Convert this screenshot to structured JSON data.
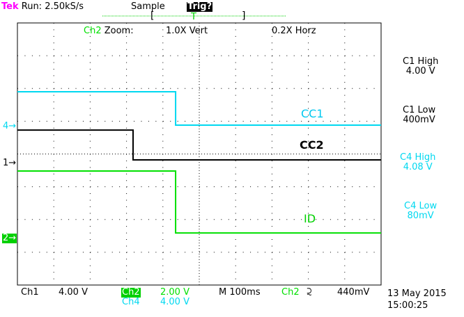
{
  "header": {
    "brand": "Tek",
    "run": "Run: 2.50kS/s",
    "mode": "Sample",
    "trigger_status": "Trig?",
    "trigger_marker": "T"
  },
  "zoom_info": {
    "channel": "Ch2",
    "label": "Zoom:",
    "vert": "1.0X Vert",
    "horz": "0.2X Horz"
  },
  "measurements": [
    {
      "label": "C1 High",
      "value": "4.00 V",
      "color": "#000000"
    },
    {
      "label": "C1 Low",
      "value": "400mV",
      "color": "#000000"
    },
    {
      "label": "C4 High",
      "value": "4.08 V",
      "color": "#00d8f0"
    },
    {
      "label": "C4 Low",
      "value": "80mV",
      "color": "#00d8f0"
    }
  ],
  "markers": {
    "ch4": "4",
    "ch1": "1",
    "ch2": "2"
  },
  "footer": {
    "ch1": "Ch1",
    "ch1_scale": "4.00 V",
    "ch2": "Ch2",
    "ch2_scale": "2.00 V",
    "ch4": "Ch4",
    "ch4_scale": "4.00 V",
    "timebase": "M 100ms",
    "trig_ch": "Ch2",
    "trig_slope": "⫈",
    "trig_level": "440mV",
    "date": "13 May 2015",
    "time": "15:00:25"
  },
  "chart_data": {
    "type": "line",
    "xlabel": "",
    "ylabel": "",
    "x_unit": "ms",
    "y_unit": "div",
    "xlim": [
      0,
      1000
    ],
    "ylim": [
      -4,
      4
    ],
    "grid": true,
    "series": [
      {
        "name": "CC1",
        "color": "#00d8f0",
        "points": [
          [
            0,
            1.9
          ],
          [
            435,
            1.9
          ],
          [
            435,
            0.88
          ],
          [
            1000,
            0.88
          ]
        ]
      },
      {
        "name": "CC2",
        "color": "#000000",
        "points": [
          [
            0,
            0.73
          ],
          [
            318,
            0.73
          ],
          [
            318,
            -0.18
          ],
          [
            1000,
            -0.18
          ]
        ]
      },
      {
        "name": "ID",
        "color": "#00e000",
        "points": [
          [
            0,
            -0.52
          ],
          [
            435,
            -0.52
          ],
          [
            435,
            -2.41
          ],
          [
            1000,
            -2.41
          ]
        ]
      }
    ]
  }
}
